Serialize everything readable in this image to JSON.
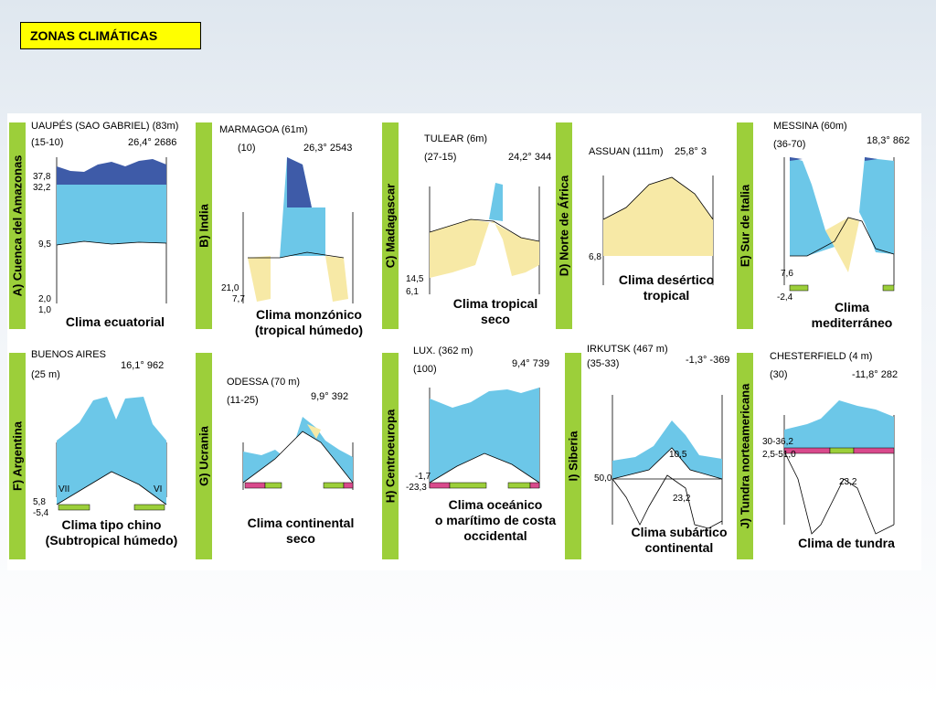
{
  "slide_title": "ZONAS CLIMÁTICAS",
  "colors": {
    "precip": "#6cc7e8",
    "dry": "#f7e9a6",
    "excess": "#3e5ba8",
    "green_bar": "#9ccf3a",
    "pink": "#d94a8c"
  },
  "panels": [
    {
      "id": "A",
      "side": "A) Cuenca del Amazonas",
      "station": "UAUPÉS (SAO GABRIEL) (83m)",
      "years": "(15-10)",
      "stats": "26,4° 2686",
      "left_values": [
        "37,8",
        "32,2",
        "9,5",
        "2,0",
        "1,0"
      ],
      "caption": [
        "Clima ecuatorial"
      ],
      "months": []
    },
    {
      "id": "B",
      "side": "B) India",
      "station": "MARMAGOA (61m)",
      "years": "(10)",
      "stats": "26,3° 2543",
      "left_values": [
        "21,0",
        "7,7"
      ],
      "caption": [
        "Clima monzónico",
        "(tropical húmedo)"
      ],
      "months": []
    },
    {
      "id": "C",
      "side": "C) Madagascar",
      "station": "TULEAR (6m)",
      "years": "(27-15)",
      "stats": "24,2° 344",
      "left_values": [
        "14,5",
        "6,1"
      ],
      "caption": [
        "Clima tropical",
        "seco"
      ],
      "months": []
    },
    {
      "id": "D",
      "side": "D) Norte de África",
      "station": "ASSUAN (111m)",
      "years": "",
      "stats": "25,8° 3",
      "left_values": [
        "6,8"
      ],
      "caption": [
        "Clima desértico",
        "tropical"
      ],
      "months": []
    },
    {
      "id": "E",
      "side": "E) Sur de Italia",
      "station": "MESSINA (60m)",
      "years": "(36-70)",
      "stats": "18,3° 862",
      "left_values": [
        "7,6",
        "-2,4"
      ],
      "caption": [
        "Clima",
        "mediterráneo"
      ],
      "months": []
    },
    {
      "id": "F",
      "side": "F) Argentina",
      "station": "BUENOS AIRES",
      "years": "(25 m)",
      "stats": "16,1° 962",
      "left_values": [
        "5,8",
        "-5,4"
      ],
      "caption": [
        "Clima tipo chino",
        "(Subtropical húmedo)"
      ],
      "months": [
        "VII",
        "VI"
      ]
    },
    {
      "id": "G",
      "side": "G) Ucrania",
      "station": "ODESSA (70 m)",
      "years": "(11-25)",
      "stats": "9,9° 392",
      "left_values": [],
      "caption": [
        "Clima continental",
        "seco"
      ],
      "months": []
    },
    {
      "id": "H",
      "side": "H) Centroeuropa",
      "station": "LUX. (362 m)",
      "years": "(100)",
      "stats": "9,4° 739",
      "left_values": [
        "-1,7",
        "-23,3"
      ],
      "caption": [
        "Clima oceánico",
        "o marítimo de costa",
        "occidental"
      ],
      "months": []
    },
    {
      "id": "I",
      "side": "I) Siberia",
      "station": "IRKUTSK (467 m)",
      "years": "(35-33)",
      "stats": "-1,3° -369",
      "left_values": [
        "50,0"
      ],
      "inner_values": [
        "10,5",
        "23,2"
      ],
      "caption": [
        "Clima subártico",
        "continental"
      ],
      "months": []
    },
    {
      "id": "J",
      "side": "J) Tundra norteamericana",
      "station": "CHESTERFIELD (4 m)",
      "years": "(30)",
      "stats": "-11,8° 282",
      "left_values": [
        "30-36,2",
        "2,5-51,0"
      ],
      "inner_values": [
        "23,2"
      ],
      "caption": [
        "Clima de tundra"
      ],
      "months": []
    }
  ]
}
